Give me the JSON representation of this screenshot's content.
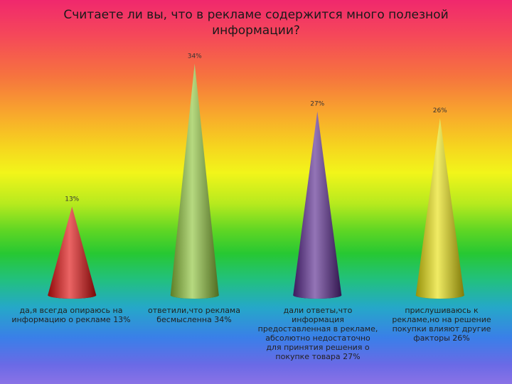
{
  "chart_data": {
    "type": "bar",
    "bar_shape": "cone",
    "title": "Считаете ли вы, что в рекламе содержится много полезной информации?",
    "categories": [
      "да,я всегда опираюсь на информацию о рекламе 13%",
      "ответили,что реклама бесмысленна 34%",
      "дали ответы,что информация предоставленная в рекламе, абсолютно недостаточно для принятия решения о покупке товара 27%",
      "прислушиваюсь к рекламе,но на решение покупки влияют другие факторы 26%"
    ],
    "values": [
      13,
      34,
      27,
      26
    ],
    "data_labels": [
      "13%",
      "34%",
      "27%",
      "26%"
    ],
    "colors": [
      "#e01010",
      "#8fc43c",
      "#5a2a90",
      "#e8e010"
    ],
    "ylim": [
      0,
      40
    ],
    "grid": false
  }
}
